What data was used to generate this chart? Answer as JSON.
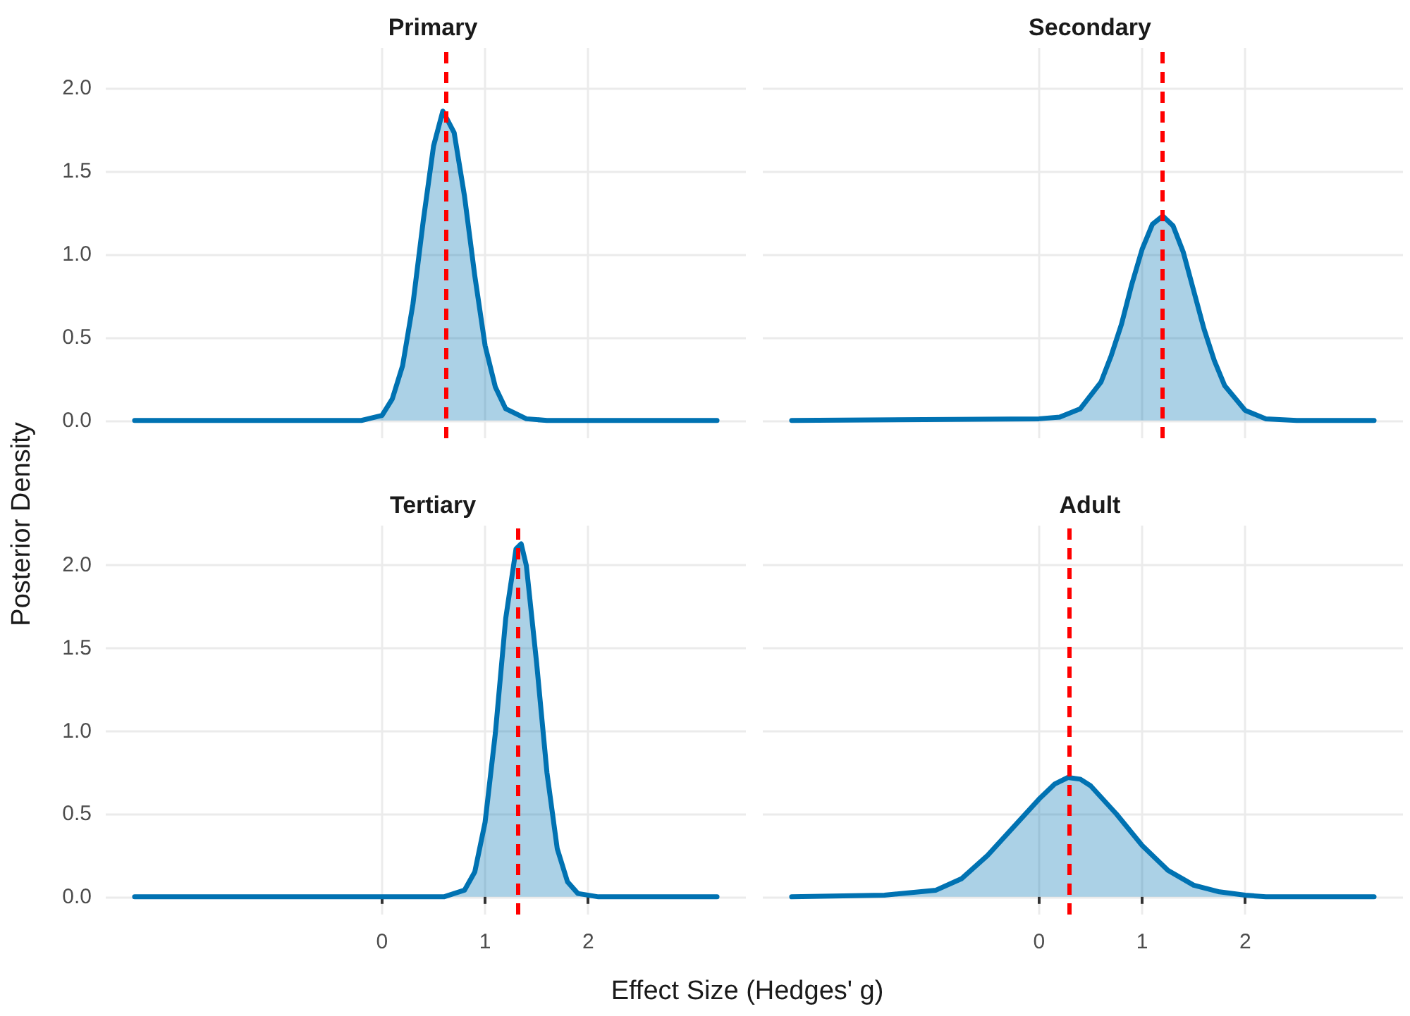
{
  "chart_data": [
    {
      "type": "area",
      "title": "Primary",
      "tick_labels": "y",
      "grid": true,
      "xlim": [
        -2.68,
        3.53
      ],
      "ylim": [
        -0.107,
        2.24
      ],
      "xticks": [
        0,
        1,
        2
      ],
      "yticks": [
        {
          "value": 0,
          "label": "0.0"
        },
        {
          "value": 0.5,
          "label": "0.5"
        },
        {
          "value": 1,
          "label": "1.0"
        },
        {
          "value": 1.5,
          "label": "1.5"
        },
        {
          "value": 2,
          "label": "2.0"
        }
      ],
      "series": [
        {
          "color": "#0072b2",
          "x": [
            -2.4,
            -0.2,
            0,
            0.1,
            0.2,
            0.3,
            0.4,
            0.5,
            0.59,
            0.7,
            0.8,
            0.9,
            1.0,
            1.1,
            1.2,
            1.4,
            1.6,
            3.25
          ],
          "values": [
            0,
            0,
            0.03,
            0.13,
            0.33,
            0.7,
            1.2,
            1.65,
            1.86,
            1.73,
            1.35,
            0.87,
            0.45,
            0.2,
            0.07,
            0.01,
            0,
            0
          ]
        }
      ],
      "ref_lines": [
        {
          "axis": "x",
          "value": 0.62,
          "color": "#ff0000",
          "line_style": "dashed"
        }
      ]
    },
    {
      "type": "area",
      "title": "Secondary",
      "tick_labels": false,
      "grid": true,
      "xlim": [
        -2.68,
        3.53
      ],
      "ylim": [
        -0.107,
        2.24
      ],
      "xticks": [
        0,
        1,
        2
      ],
      "yticks": [
        0,
        0.5,
        1,
        1.5,
        2
      ],
      "series": [
        {
          "color": "#0072b2",
          "x": [
            -2.4,
            0,
            0.2,
            0.4,
            0.6,
            0.7,
            0.8,
            0.9,
            1.0,
            1.1,
            1.2,
            1.3,
            1.4,
            1.5,
            1.6,
            1.7,
            1.8,
            2.0,
            2.2,
            2.5,
            3.25
          ],
          "values": [
            0,
            0.01,
            0.02,
            0.07,
            0.23,
            0.39,
            0.58,
            0.82,
            1.03,
            1.18,
            1.23,
            1.17,
            1.01,
            0.78,
            0.55,
            0.36,
            0.21,
            0.06,
            0.01,
            0,
            0
          ]
        }
      ],
      "ref_lines": [
        {
          "axis": "x",
          "value": 1.19,
          "color": "#ff0000",
          "line_style": "dashed"
        }
      ]
    },
    {
      "type": "area",
      "title": "Tertiary",
      "xlabel": "Effect Size (Hedges' g)",
      "ylabel": "Posterior Density",
      "grid": true,
      "xlim": [
        -2.68,
        3.53
      ],
      "ylim": [
        -0.107,
        2.24
      ],
      "xticks": [
        0,
        1,
        2
      ],
      "yticks": [
        {
          "value": 0,
          "label": "0.0"
        },
        {
          "value": 0.5,
          "label": "0.5"
        },
        {
          "value": 1,
          "label": "1.0"
        },
        {
          "value": 1.5,
          "label": "1.5"
        },
        {
          "value": 2,
          "label": "2.0"
        }
      ],
      "series": [
        {
          "color": "#0072b2",
          "x": [
            -2.4,
            0.6,
            0.8,
            0.9,
            1.0,
            1.1,
            1.2,
            1.3,
            1.35,
            1.4,
            1.5,
            1.6,
            1.7,
            1.8,
            1.9,
            2.1,
            3.25
          ],
          "values": [
            0,
            0,
            0.04,
            0.15,
            0.45,
            0.99,
            1.68,
            2.1,
            2.13,
            2.0,
            1.41,
            0.75,
            0.29,
            0.09,
            0.02,
            0,
            0
          ]
        }
      ],
      "ref_lines": [
        {
          "axis": "x",
          "value": 1.32,
          "color": "#ff0000",
          "line_style": "dashed"
        }
      ]
    },
    {
      "type": "area",
      "title": "Adult",
      "tick_labels": "x",
      "grid": true,
      "xlim": [
        -2.68,
        3.53
      ],
      "ylim": [
        -0.107,
        2.24
      ],
      "xticks": [
        0,
        1,
        2
      ],
      "yticks": [
        0,
        0.5,
        1,
        1.5,
        2
      ],
      "series": [
        {
          "color": "#0072b2",
          "x": [
            -2.4,
            -1.5,
            -1.0,
            -0.75,
            -0.5,
            -0.25,
            0,
            0.15,
            0.28,
            0.4,
            0.5,
            0.75,
            1.0,
            1.25,
            1.5,
            1.75,
            2.0,
            2.2,
            3.25
          ],
          "values": [
            0,
            0.01,
            0.04,
            0.11,
            0.25,
            0.42,
            0.59,
            0.68,
            0.72,
            0.71,
            0.67,
            0.5,
            0.31,
            0.16,
            0.07,
            0.03,
            0.01,
            0,
            0
          ]
        }
      ],
      "ref_lines": [
        {
          "axis": "x",
          "value": 0.29,
          "color": "#ff0000",
          "line_style": "dashed"
        }
      ]
    }
  ]
}
